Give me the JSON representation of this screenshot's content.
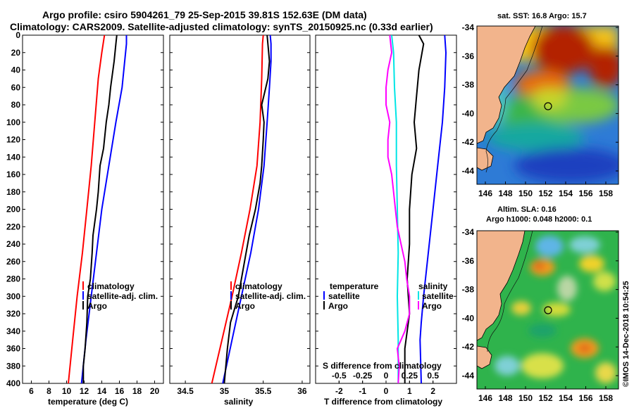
{
  "title": {
    "line1": "Argo profile: csiro 5904261_79 25-Sep-2015 39.81S 152.63E (DM data)",
    "line2": "Climatology: CARS2009. Satellite-adjusted climatology: synTS_20150925.nc (0.33d earlier)"
  },
  "colors": {
    "argo": "#000000",
    "climatology": "#ff0000",
    "satellite": "#0000ff",
    "s_diff_argo": "#ff00ff",
    "s_diff_sat": "#00e5e5",
    "land": "#f2b48c",
    "marker": "#000000"
  },
  "chart_data": [
    {
      "type": "line",
      "id": "temperature",
      "xlabel": "temperature (deg C)",
      "ylabel": "depth",
      "xlim": [
        5,
        21
      ],
      "ylim": [
        400,
        0
      ],
      "xticks": [
        6,
        8,
        10,
        12,
        14,
        16,
        18,
        20
      ],
      "yticks": [
        0,
        20,
        40,
        60,
        80,
        100,
        120,
        140,
        160,
        180,
        200,
        220,
        240,
        260,
        280,
        300,
        320,
        340,
        360,
        380,
        400
      ],
      "legend": [
        "climatology",
        "satellite-adj. clim.",
        "Argo"
      ],
      "series": [
        {
          "name": "climatology",
          "color": "#ff0000",
          "depth": [
            0,
            20,
            50,
            100,
            150,
            200,
            250,
            300,
            350,
            400
          ],
          "values": [
            14.3,
            14.0,
            13.6,
            13.2,
            12.8,
            12.3,
            11.8,
            11.2,
            10.7,
            10.2
          ]
        },
        {
          "name": "satellite-adj. clim.",
          "color": "#0000ff",
          "depth": [
            0,
            10,
            30,
            60,
            100,
            150,
            200,
            250,
            300,
            350,
            400
          ],
          "values": [
            16.8,
            16.8,
            16.6,
            16.3,
            15.6,
            14.8,
            14.0,
            13.4,
            12.8,
            12.2,
            11.7
          ]
        },
        {
          "name": "Argo",
          "color": "#000000",
          "depth": [
            0,
            10,
            30,
            60,
            80,
            100,
            130,
            150,
            180,
            200,
            230,
            250,
            280,
            300,
            330,
            360,
            380,
            400
          ],
          "values": [
            15.7,
            15.6,
            15.4,
            15.0,
            14.8,
            14.5,
            14.2,
            13.8,
            13.6,
            13.4,
            13.0,
            12.9,
            12.7,
            12.4,
            12.3,
            12.1,
            11.9,
            11.9
          ]
        }
      ]
    },
    {
      "type": "line",
      "id": "salinity",
      "xlabel": "salinity",
      "ylabel": "depth",
      "xlim": [
        34.3,
        36.1
      ],
      "ylim": [
        400,
        0
      ],
      "xticks": [
        34.5,
        35,
        35.5,
        36
      ],
      "xticklabels": [
        "34.5",
        "35",
        "35.5",
        "36"
      ],
      "legend": [
        "climatology",
        "satellite-adj. clim.",
        "Argo"
      ],
      "series": [
        {
          "name": "climatology",
          "color": "#ff0000",
          "depth": [
            0,
            10,
            50,
            100,
            150,
            200,
            250,
            300,
            350,
            400
          ],
          "values": [
            35.5,
            35.49,
            35.48,
            35.46,
            35.42,
            35.33,
            35.22,
            35.1,
            34.97,
            34.84
          ]
        },
        {
          "name": "satellite-adj. clim.",
          "color": "#0000ff",
          "depth": [
            0,
            10,
            30,
            60,
            100,
            150,
            200,
            250,
            300,
            350,
            400
          ],
          "values": [
            35.59,
            35.6,
            35.6,
            35.58,
            35.55,
            35.51,
            35.44,
            35.34,
            35.22,
            35.1,
            34.98
          ]
        },
        {
          "name": "Argo",
          "color": "#000000",
          "depth": [
            0,
            10,
            30,
            50,
            80,
            100,
            120,
            150,
            170,
            200,
            230,
            260,
            300,
            330,
            360,
            380,
            400
          ],
          "values": [
            35.55,
            35.56,
            35.58,
            35.56,
            35.48,
            35.51,
            35.5,
            35.48,
            35.46,
            35.4,
            35.32,
            35.26,
            35.18,
            35.08,
            35.04,
            35.02,
            35.0
          ]
        }
      ]
    },
    {
      "type": "line",
      "id": "difference",
      "xlabel": "T difference from climatology",
      "ylabel": "depth",
      "xlim": [
        -3,
        3
      ],
      "ylim": [
        400,
        0
      ],
      "xticks": [
        -2,
        -1,
        0,
        1,
        2
      ],
      "top_label": "S difference from climatology",
      "top_xlim": [
        -0.75,
        0.75
      ],
      "top_xticks": [
        -0.5,
        -0.25,
        0,
        0.25,
        0.5
      ],
      "top_xticklabels": [
        "-0.5",
        "-0.25",
        "0",
        "0.25",
        "0.5"
      ],
      "legend_left": {
        "title": "temperature",
        "items": [
          "satellite",
          "Argo"
        ]
      },
      "legend_right": {
        "title": "salinity",
        "items": [
          "satellite",
          "Argo"
        ]
      },
      "series": [
        {
          "name": "T satellite",
          "axis": "T",
          "color": "#0000ff",
          "depth": [
            0,
            20,
            60,
            100,
            150,
            200,
            250,
            300,
            330,
            350,
            400
          ],
          "values": [
            2.5,
            2.55,
            2.5,
            2.4,
            2.2,
            2.0,
            1.8,
            1.6,
            1.5,
            1.45,
            1.5
          ]
        },
        {
          "name": "T Argo",
          "axis": "T",
          "color": "#000000",
          "depth": [
            0,
            10,
            40,
            70,
            100,
            130,
            160,
            200,
            240,
            280,
            320,
            360,
            400
          ],
          "values": [
            1.4,
            1.6,
            1.4,
            1.3,
            1.2,
            1.3,
            1.1,
            1.0,
            1.0,
            0.9,
            1.0,
            0.8,
            0.8
          ]
        },
        {
          "name": "S satellite",
          "axis": "S",
          "color": "#00e5e5",
          "depth": [
            0,
            20,
            60,
            100,
            150,
            200,
            250,
            300,
            350,
            400
          ],
          "values": [
            0.06,
            0.08,
            0.09,
            0.11,
            0.11,
            0.12,
            0.13,
            0.12,
            0.13,
            0.13
          ]
        },
        {
          "name": "S Argo",
          "axis": "S",
          "color": "#ff00ff",
          "depth": [
            0,
            20,
            40,
            60,
            80,
            100,
            120,
            140,
            160,
            180,
            200,
            220,
            240,
            260,
            280,
            300,
            320,
            340,
            360,
            380,
            400
          ],
          "values": [
            0.04,
            0.06,
            0.02,
            0.0,
            0.0,
            0.04,
            0.02,
            0.02,
            0.06,
            0.08,
            0.1,
            0.12,
            0.16,
            0.2,
            0.22,
            0.25,
            0.25,
            0.2,
            0.12,
            0.14,
            0.13
          ]
        }
      ]
    }
  ],
  "maps": [
    {
      "id": "sst-map",
      "title_lines": [
        "sat. SST: 16.8 Argo: 15.7"
      ],
      "xticks": [
        "146",
        "148",
        "150",
        "152",
        "154",
        "156",
        "158"
      ],
      "yticks": [
        "-34",
        "-36",
        "-38",
        "-40",
        "-42",
        "-44"
      ]
    },
    {
      "id": "sla-map",
      "title_lines": [
        "Altim. SLA: 0.16",
        "Argo h1000: 0.048 h2000: 0.1"
      ],
      "xticks": [
        "146",
        "148",
        "150",
        "152",
        "154",
        "156",
        "158"
      ],
      "yticks": [
        "-34",
        "-36",
        "-38",
        "-40",
        "-42",
        "-44"
      ]
    }
  ],
  "credit": "©IMOS 14-Dec-2018 10:54:25"
}
